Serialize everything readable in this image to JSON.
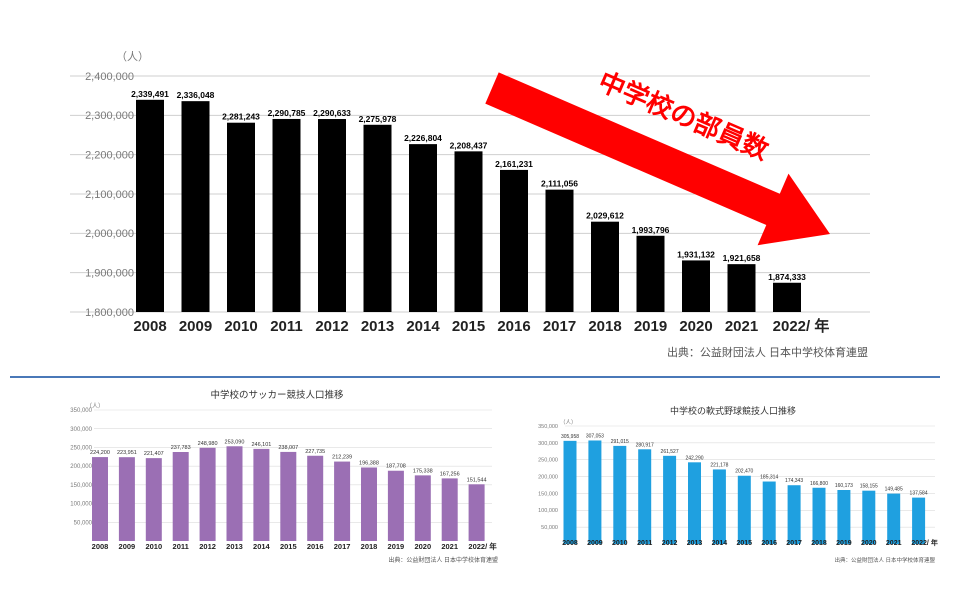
{
  "chart_data": [
    {
      "type": "bar",
      "title": "中学校の部員数",
      "unit_label": "（人）",
      "categories": [
        "2008",
        "2009",
        "2010",
        "2011",
        "2012",
        "2013",
        "2014",
        "2015",
        "2016",
        "2017",
        "2018",
        "2019",
        "2020",
        "2021",
        "2022/ 年"
      ],
      "values": [
        2339491,
        2336048,
        2281243,
        2290785,
        2290633,
        2275978,
        2226804,
        2208437,
        2161231,
        2111056,
        2029612,
        1993796,
        1931132,
        1921658,
        1874333
      ],
      "value_labels": [
        "2,339,491",
        "2,336,048",
        "2,281,243",
        "2,290,785",
        "2,290,633",
        "2,275,978",
        "2,226,804",
        "2,208,437",
        "2,161,231",
        "2,111,056",
        "2,029,612",
        "1,993,796",
        "1,931,132",
        "1,921,658",
        "1,874,333"
      ],
      "ylim": [
        1800000,
        2400000
      ],
      "yticks": [
        "2,400,000",
        "2,300,000",
        "2,200,000",
        "2,100,000",
        "2,000,000",
        "1,900,000",
        "1,800,000"
      ],
      "grid": true,
      "bar_color": "#000000",
      "arrow_color": "#ff0000",
      "source": "出典：公益財団法人 日本中学校体育連盟"
    },
    {
      "type": "bar",
      "title": "中学校のサッカー競技人口推移",
      "unit_label": "（人）",
      "categories": [
        "2008",
        "2009",
        "2010",
        "2011",
        "2012",
        "2013",
        "2014",
        "2015",
        "2016",
        "2017",
        "2018",
        "2019",
        "2020",
        "2021",
        "2022/ 年"
      ],
      "values": [
        224200,
        223951,
        221407,
        237783,
        248980,
        253090,
        246101,
        238007,
        227735,
        212239,
        196388,
        187708,
        175338,
        167256,
        151544
      ],
      "value_labels": [
        "224,200",
        "223,951",
        "221,407",
        "237,783",
        "248,980",
        "253,090",
        "246,101",
        "238,007",
        "227,735",
        "212,239",
        "196,388",
        "187,708",
        "175,338",
        "167,256",
        "151,544"
      ],
      "ylim": [
        0,
        350000
      ],
      "yticks": [
        "350,000",
        "300,000",
        "250,000",
        "200,000",
        "150,000",
        "100,000",
        "50,000"
      ],
      "grid": true,
      "bar_color": "#9b6fb4",
      "source": "出典：公益財団法人 日本中学校体育連盟"
    },
    {
      "type": "bar",
      "title": "中学校の軟式野球競技人口推移",
      "unit_label": "（人）",
      "categories": [
        "2008",
        "2009",
        "2010",
        "2011",
        "2012",
        "2013",
        "2014",
        "2015",
        "2016",
        "2017",
        "2018",
        "2019",
        "2020",
        "2021",
        "2022/ 年"
      ],
      "values": [
        305958,
        307053,
        291015,
        280917,
        261527,
        242290,
        221178,
        202470,
        185314,
        174343,
        166800,
        160173,
        158155,
        149485,
        137584
      ],
      "value_labels": [
        "305,958",
        "307,053",
        "291,015",
        "280,917",
        "261,527",
        "242,290",
        "221,178",
        "202,470",
        "185,314",
        "174,343",
        "166,800",
        "160,173",
        "158,155",
        "149,485",
        "137,584"
      ],
      "ylim": [
        0,
        350000
      ],
      "yticks": [
        "350,000",
        "300,000",
        "250,000",
        "200,000",
        "150,000",
        "100,000",
        "50,000"
      ],
      "grid": true,
      "bar_color": "#1fa0e0",
      "source": "出典：公益財団法人 日本中学校体育連盟"
    }
  ]
}
